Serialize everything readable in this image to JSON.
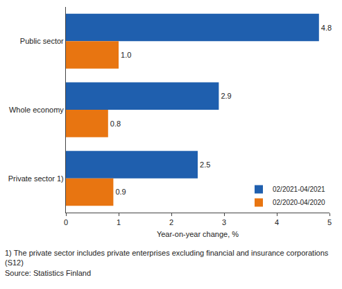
{
  "chart_data": {
    "type": "bar",
    "orientation": "horizontal",
    "categories": [
      "Public sector",
      "Whole economy",
      "Private sector 1)"
    ],
    "series": [
      {
        "name": "02/2021-04/2021",
        "color": "#1f5fae",
        "values": [
          4.8,
          2.9,
          2.5
        ],
        "value_labels": [
          "4.8",
          "2.9",
          "2.5"
        ]
      },
      {
        "name": "02/2020-04/2020",
        "color": "#e87511",
        "values": [
          1.0,
          0.8,
          0.9
        ],
        "value_labels": [
          "1.0",
          "0.8",
          "0.9"
        ]
      }
    ],
    "x_label": "Year-on-year change, %",
    "xlim": [
      0,
      5
    ],
    "xticks": [
      0,
      1,
      2,
      3,
      4,
      5
    ],
    "grid": false,
    "legend": "bottom right",
    "data_labels": true,
    "notes": [
      "1) The private sector includes private enterprises excluding financial and insurance corporations",
      "(S12)",
      "Source: Statistics Finland"
    ]
  }
}
